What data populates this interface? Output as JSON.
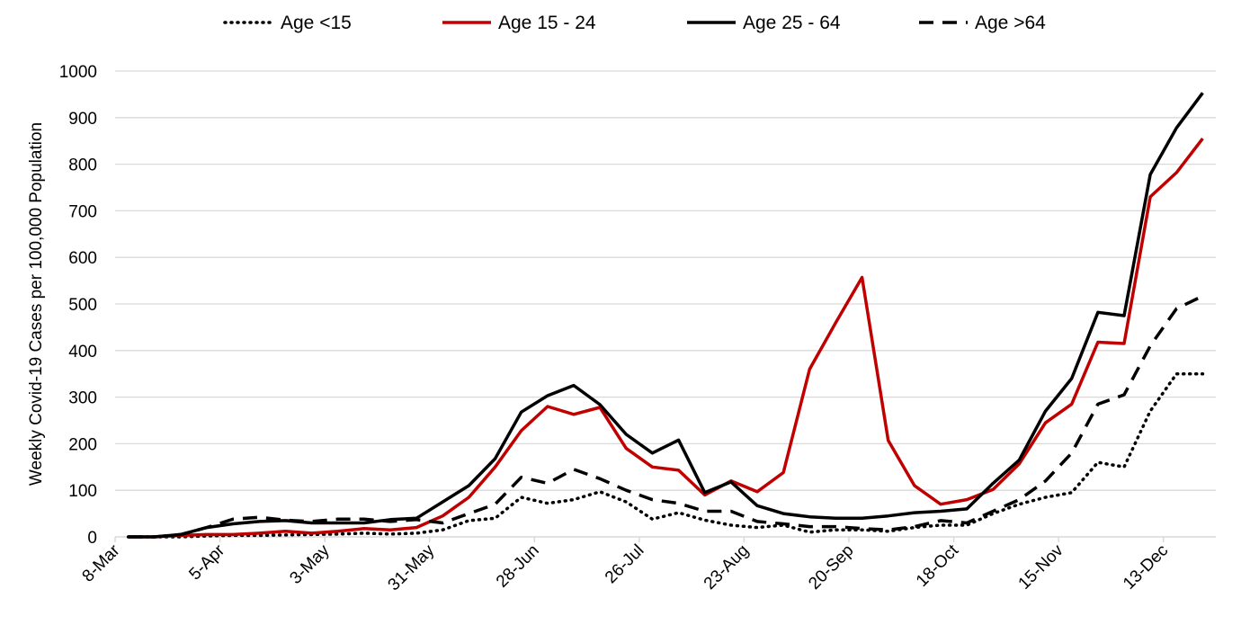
{
  "chart_data": {
    "type": "line",
    "ylabel": "Weekly Covid-19 Cases per 100,000 Population",
    "xlabel": "",
    "ylim": [
      0,
      1000
    ],
    "yticks": [
      0,
      100,
      200,
      300,
      400,
      500,
      600,
      700,
      800,
      900,
      1000
    ],
    "xtick_labels": [
      "8-Mar",
      "5-Apr",
      "3-May",
      "31-May",
      "28-Jun",
      "26-Jul",
      "23-Aug",
      "20-Sep",
      "18-Oct",
      "15-Nov",
      "13-Dec"
    ],
    "grid": "horizontal",
    "legend_position": "top",
    "x_weeks": [
      "8-Mar",
      "15-Mar",
      "22-Mar",
      "29-Mar",
      "5-Apr",
      "12-Apr",
      "19-Apr",
      "26-Apr",
      "3-May",
      "10-May",
      "17-May",
      "24-May",
      "31-May",
      "7-Jun",
      "14-Jun",
      "21-Jun",
      "28-Jun",
      "5-Jul",
      "12-Jul",
      "19-Jul",
      "26-Jul",
      "2-Aug",
      "9-Aug",
      "16-Aug",
      "23-Aug",
      "30-Aug",
      "6-Sep",
      "13-Sep",
      "20-Sep",
      "27-Sep",
      "4-Oct",
      "11-Oct",
      "18-Oct",
      "25-Oct",
      "1-Nov",
      "8-Nov",
      "15-Nov",
      "22-Nov",
      "29-Nov",
      "6-Dec",
      "13-Dec",
      "20-Dec"
    ],
    "series": [
      {
        "name": "Age <15",
        "style": "dotted",
        "color": "#000000",
        "values": [
          0,
          0,
          0,
          2,
          3,
          3,
          4,
          5,
          6,
          8,
          6,
          8,
          15,
          35,
          40,
          85,
          72,
          80,
          97,
          75,
          38,
          52,
          36,
          25,
          20,
          25,
          10,
          15,
          15,
          12,
          20,
          25,
          25,
          50,
          70,
          85,
          95,
          160,
          150,
          270,
          350,
          350
        ]
      },
      {
        "name": "Age 15 - 24",
        "style": "solid",
        "color": "#c00000",
        "values": [
          0,
          0,
          3,
          5,
          5,
          8,
          12,
          8,
          12,
          18,
          15,
          20,
          45,
          85,
          150,
          228,
          280,
          263,
          278,
          190,
          150,
          143,
          90,
          120,
          97,
          138,
          360,
          460,
          557,
          207,
          110,
          70,
          80,
          102,
          157,
          245,
          285,
          418,
          415,
          730,
          782,
          855
        ]
      },
      {
        "name": "Age 25 - 64",
        "style": "solid",
        "color": "#000000",
        "values": [
          0,
          0,
          5,
          20,
          28,
          33,
          35,
          30,
          30,
          30,
          37,
          40,
          75,
          110,
          168,
          268,
          303,
          325,
          284,
          220,
          180,
          208,
          95,
          118,
          67,
          50,
          43,
          40,
          40,
          45,
          52,
          55,
          60,
          115,
          165,
          270,
          340,
          482,
          475,
          778,
          878,
          953
        ]
      },
      {
        "name": "Age >64",
        "style": "dashed",
        "color": "#000000",
        "values": [
          0,
          0,
          5,
          20,
          38,
          42,
          36,
          33,
          38,
          38,
          33,
          37,
          30,
          50,
          70,
          128,
          115,
          145,
          125,
          100,
          80,
          72,
          55,
          55,
          33,
          28,
          22,
          22,
          18,
          15,
          22,
          35,
          30,
          55,
          80,
          120,
          180,
          285,
          305,
          410,
          490,
          517
        ]
      }
    ]
  }
}
